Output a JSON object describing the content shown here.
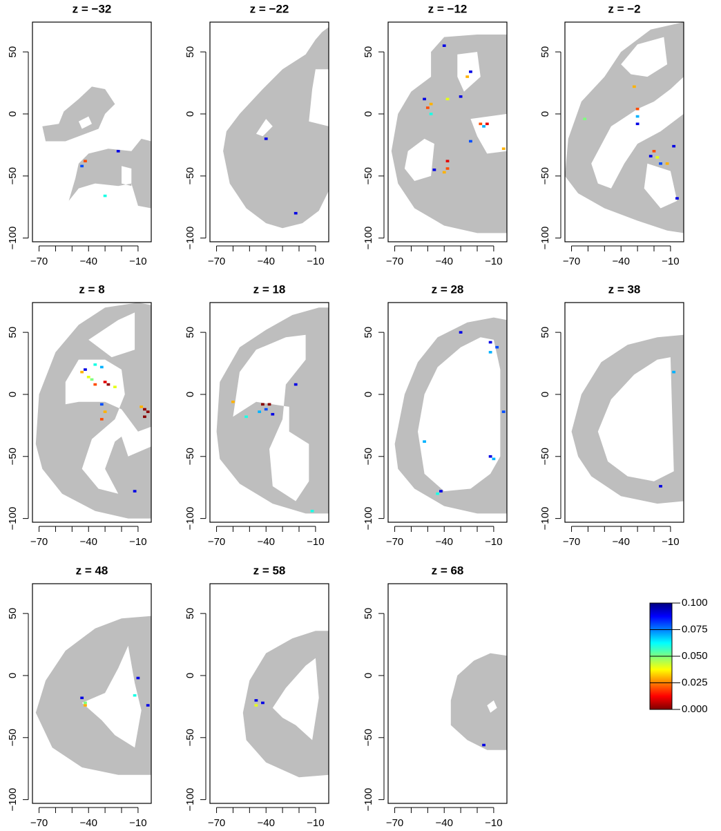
{
  "chart_data": [
    {
      "type": "heatmap",
      "title": "z = −32",
      "x": [
        -44,
        -42,
        -22,
        -30
      ],
      "y": [
        -42,
        -38,
        -30,
        -66
      ],
      "values": [
        0.08,
        0.02,
        0.09,
        0.06
      ],
      "xlim": [
        -74,
        -2
      ],
      "ylim": [
        -103,
        74
      ],
      "xticks": [
        {
          "value": -70,
          "label": "−70"
        },
        {
          "value": -40,
          "label": "−40"
        },
        {
          "value": -10,
          "label": "−10"
        }
      ],
      "xminor": [
        -60,
        -50,
        -30,
        -20
      ],
      "yticks": [
        {
          "value": -100,
          "label": "−100"
        },
        {
          "value": -50,
          "label": "−50"
        },
        0,
        50
      ]
    },
    {
      "type": "heatmap",
      "title": "z = −22",
      "x": [
        -40,
        -22
      ],
      "y": [
        -20,
        -80
      ],
      "values": [
        0.09,
        0.09
      ],
      "xlim": [
        -74,
        -2
      ],
      "ylim": [
        -103,
        74
      ],
      "xticks": [
        {
          "value": -70,
          "label": "−70"
        },
        {
          "value": -40,
          "label": "−40"
        },
        {
          "value": -10,
          "label": "−10"
        }
      ],
      "xminor": [
        -60,
        -50,
        -30,
        -20
      ],
      "yticks": [
        {
          "value": -100,
          "label": "−100"
        },
        {
          "value": -50,
          "label": "−50"
        },
        0,
        50
      ]
    },
    {
      "type": "heatmap",
      "title": "z = −12",
      "x": [
        -50,
        -48,
        -52,
        -48,
        -38,
        -30,
        -26,
        -24,
        -40,
        -18,
        -14,
        -24,
        -38,
        -38,
        -40,
        -46,
        -4,
        -16
      ],
      "y": [
        5,
        8,
        12,
        0,
        12,
        14,
        30,
        34,
        55,
        -8,
        -8,
        -22,
        -38,
        -44,
        -47,
        -45,
        -28,
        -10
      ],
      "values": [
        0.02,
        0.03,
        0.09,
        0.06,
        0.04,
        0.09,
        0.03,
        0.09,
        0.09,
        0.02,
        0.01,
        0.08,
        0.01,
        0.02,
        0.03,
        0.09,
        0.03,
        0.07
      ],
      "xlim": [
        -74,
        -2
      ],
      "ylim": [
        -103,
        74
      ],
      "xticks": [
        {
          "value": -70,
          "label": "−70"
        },
        {
          "value": -40,
          "label": "−40"
        },
        {
          "value": -10,
          "label": "−10"
        }
      ],
      "xminor": [
        -60,
        -50,
        -30,
        -20
      ],
      "yticks": [
        {
          "value": -100,
          "label": "−100"
        },
        {
          "value": -50,
          "label": "−50"
        },
        0,
        50
      ]
    },
    {
      "type": "heatmap",
      "title": "z = −2",
      "x": [
        -62,
        -32,
        -30,
        -30,
        -30,
        -20,
        -18,
        -16,
        -22,
        -12,
        -8,
        -6
      ],
      "y": [
        -4,
        22,
        4,
        -2,
        -8,
        -30,
        -35,
        -40,
        -34,
        -40,
        -26,
        -68
      ],
      "values": [
        0.05,
        0.03,
        0.02,
        0.07,
        0.09,
        0.02,
        0.04,
        0.08,
        0.09,
        0.03,
        0.09,
        0.09
      ],
      "xlim": [
        -74,
        -2
      ],
      "ylim": [
        -103,
        74
      ],
      "xticks": [
        {
          "value": -70,
          "label": "−70"
        },
        {
          "value": -40,
          "label": "−40"
        },
        {
          "value": -10,
          "label": "−10"
        }
      ],
      "xminor": [
        -60,
        -50,
        -30,
        -20
      ],
      "yticks": [
        {
          "value": -100,
          "label": "−100"
        },
        {
          "value": -50,
          "label": "−50"
        },
        0,
        50
      ]
    },
    {
      "type": "heatmap",
      "title": "z = 8",
      "x": [
        -44,
        -40,
        -42,
        -36,
        -32,
        -30,
        -28,
        -24,
        -36,
        -38,
        -32,
        -30,
        -32,
        -4,
        -6,
        -6,
        -8,
        -12
      ],
      "y": [
        18,
        14,
        20,
        24,
        22,
        10,
        8,
        6,
        8,
        12,
        -8,
        -14,
        -20,
        -14,
        -12,
        -18,
        -10,
        -78
      ],
      "values": [
        0.03,
        0.04,
        0.09,
        0.06,
        0.07,
        0.01,
        0.002,
        0.04,
        0.02,
        0.05,
        0.08,
        0.03,
        0.02,
        0.001,
        0.002,
        0.001,
        0.03,
        0.09
      ],
      "xlim": [
        -74,
        -2
      ],
      "ylim": [
        -103,
        74
      ],
      "xticks": [
        {
          "value": -70,
          "label": "−70"
        },
        {
          "value": -40,
          "label": "−40"
        },
        {
          "value": -10,
          "label": "−10"
        }
      ],
      "xminor": [
        -60,
        -50,
        -30,
        -20
      ],
      "yticks": [
        {
          "value": -100,
          "label": "−100"
        },
        {
          "value": -50,
          "label": "−50"
        },
        0,
        50
      ]
    },
    {
      "type": "heatmap",
      "title": "z = 18",
      "x": [
        -60,
        -42,
        -38,
        -40,
        -36,
        -52,
        -44,
        -22,
        -12
      ],
      "y": [
        -6,
        -8,
        -8,
        -12,
        -16,
        -18,
        -14,
        8,
        -94
      ],
      "values": [
        0.03,
        0.001,
        0.001,
        0.08,
        0.09,
        0.06,
        0.07,
        0.09,
        0.06
      ],
      "xlim": [
        -74,
        -2
      ],
      "ylim": [
        -103,
        74
      ],
      "xticks": [
        {
          "value": -70,
          "label": "−70"
        },
        {
          "value": -40,
          "label": "−40"
        },
        {
          "value": -10,
          "label": "−10"
        }
      ],
      "xminor": [
        -60,
        -50,
        -30,
        -20
      ],
      "yticks": [
        {
          "value": -100,
          "label": "−100"
        },
        {
          "value": -50,
          "label": "−50"
        },
        0,
        50
      ]
    },
    {
      "type": "heatmap",
      "title": "z = 28",
      "x": [
        -30,
        -12,
        -8,
        -12,
        -4,
        -52,
        -12,
        -10,
        -42,
        -44
      ],
      "y": [
        50,
        42,
        38,
        34,
        -14,
        -38,
        -50,
        -52,
        -78,
        -80
      ],
      "values": [
        0.09,
        0.09,
        0.08,
        0.07,
        0.08,
        0.07,
        0.09,
        0.07,
        0.09,
        0.06
      ],
      "xlim": [
        -74,
        -2
      ],
      "ylim": [
        -103,
        74
      ],
      "xticks": [
        {
          "value": -70,
          "label": "−70"
        },
        {
          "value": -40,
          "label": "−40"
        },
        {
          "value": -10,
          "label": "−10"
        }
      ],
      "xminor": [
        -60,
        -50,
        -30,
        -20
      ],
      "yticks": [
        {
          "value": -100,
          "label": "−100"
        },
        {
          "value": -50,
          "label": "−50"
        },
        0,
        50
      ]
    },
    {
      "type": "heatmap",
      "title": "z = 38",
      "x": [
        -8,
        -16
      ],
      "y": [
        18,
        -74
      ],
      "values": [
        0.07,
        0.09
      ],
      "xlim": [
        -74,
        -2
      ],
      "ylim": [
        -103,
        74
      ],
      "xticks": [
        {
          "value": -70,
          "label": "−70"
        },
        {
          "value": -40,
          "label": "−40"
        },
        {
          "value": -10,
          "label": "−10"
        }
      ],
      "xminor": [
        -60,
        -50,
        -30,
        -20
      ],
      "yticks": [
        {
          "value": -100,
          "label": "−100"
        },
        {
          "value": -50,
          "label": "−50"
        },
        0,
        50
      ]
    },
    {
      "type": "heatmap",
      "title": "z = 48",
      "x": [
        -44,
        -42,
        -42,
        -10,
        -12,
        -4
      ],
      "y": [
        -18,
        -22,
        -24,
        -2,
        -16,
        -24
      ],
      "values": [
        0.09,
        0.05,
        0.03,
        0.09,
        0.06,
        0.09
      ],
      "xlim": [
        -74,
        -2
      ],
      "ylim": [
        -103,
        74
      ],
      "xticks": [
        {
          "value": -70,
          "label": "−70"
        },
        {
          "value": -40,
          "label": "−40"
        },
        {
          "value": -10,
          "label": "−10"
        }
      ],
      "xminor": [
        -60,
        -50,
        -30,
        -20
      ],
      "yticks": [
        {
          "value": -100,
          "label": "−100"
        },
        {
          "value": -50,
          "label": "−50"
        },
        0,
        50
      ]
    },
    {
      "type": "heatmap",
      "title": "z = 58",
      "x": [
        -46,
        -46,
        -42
      ],
      "y": [
        -20,
        -24,
        -22
      ],
      "values": [
        0.09,
        0.04,
        0.09
      ],
      "xlim": [
        -74,
        -2
      ],
      "ylim": [
        -103,
        74
      ],
      "xticks": [
        {
          "value": -70,
          "label": "−70"
        },
        {
          "value": -40,
          "label": "−40"
        },
        {
          "value": -10,
          "label": "−10"
        }
      ],
      "xminor": [
        -60,
        -50,
        -30,
        -20
      ],
      "yticks": [
        {
          "value": -100,
          "label": "−100"
        },
        {
          "value": -50,
          "label": "−50"
        },
        0,
        50
      ]
    },
    {
      "type": "heatmap",
      "title": "z = 68",
      "x": [
        -16
      ],
      "y": [
        -56
      ],
      "values": [
        0.09
      ],
      "xlim": [
        -74,
        -2
      ],
      "ylim": [
        -103,
        74
      ],
      "xticks": [
        {
          "value": -70,
          "label": "−70"
        },
        {
          "value": -40,
          "label": "−40"
        },
        {
          "value": -10,
          "label": "−10"
        }
      ],
      "xminor": [
        -60,
        -50,
        -30,
        -20
      ],
      "yticks": [
        {
          "value": -100,
          "label": "−100"
        },
        {
          "value": -50,
          "label": "−50"
        },
        0,
        50
      ]
    },
    {
      "type": "colorbar",
      "ylim": [
        0,
        0.1
      ],
      "yticks": [
        {
          "value": 0,
          "label": "0.000"
        },
        0.025,
        {
          "value": 0.05,
          "label": "0.050"
        },
        0.075,
        {
          "value": 0.1,
          "label": "0.100"
        }
      ],
      "colors": [
        "#7f0000",
        "#ff0000",
        "#ff7f00",
        "#ffff00",
        "#7fff7f",
        "#00ffff",
        "#007fff",
        "#0000ff",
        "#00007f"
      ]
    }
  ]
}
